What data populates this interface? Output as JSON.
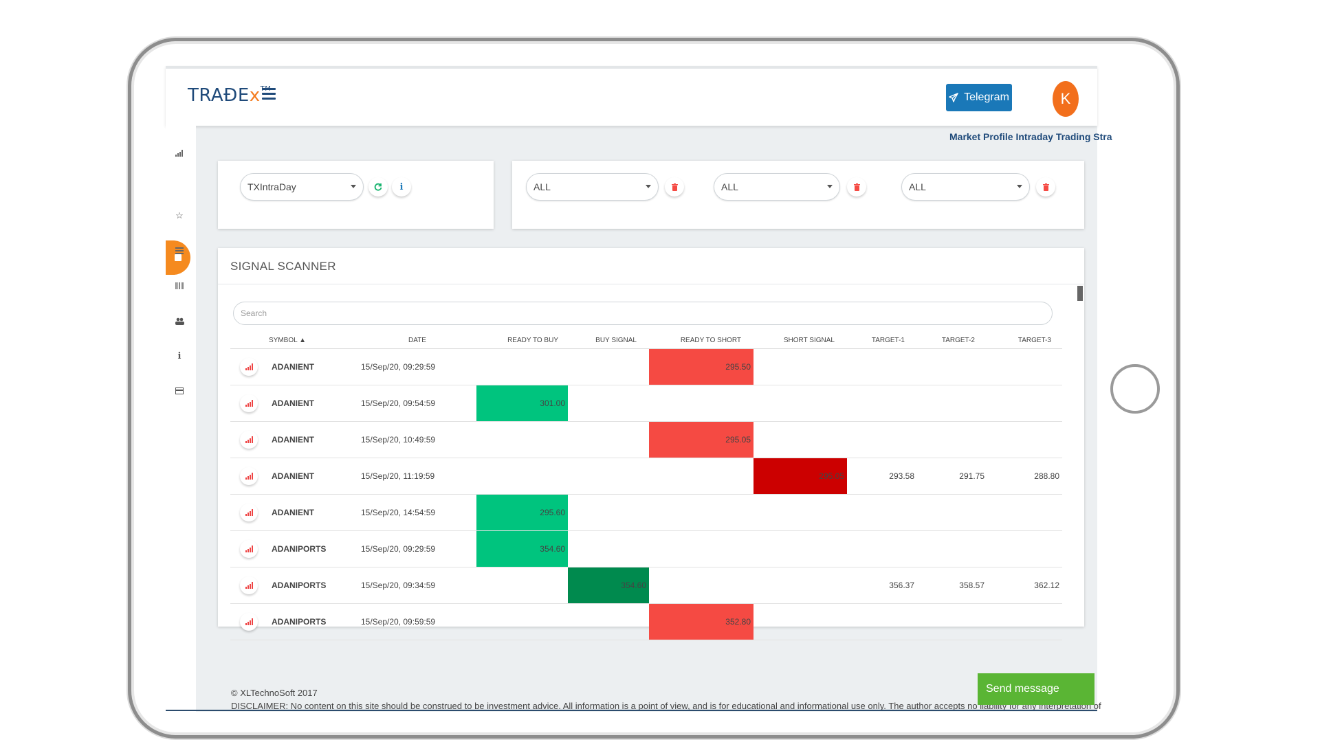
{
  "header": {
    "logo": "TRAĐE",
    "logo_x": "x",
    "logo_tm": "TM",
    "telegram_label": "Telegram",
    "avatar_initial": "K"
  },
  "marquee": "Market Profile Intraday Trading Stra",
  "filters": {
    "strategy": "TXIntraDay",
    "filter1": "ALL",
    "filter2": "ALL",
    "filter3": "ALL"
  },
  "scanner": {
    "title": "SIGNAL SCANNER",
    "search_placeholder": "Search",
    "sort_indicator": "▲",
    "columns": [
      "SYMBOL",
      "DATE",
      "READY TO BUY",
      "BUY SIGNAL",
      "READY TO SHORT",
      "SHORT SIGNAL",
      "TARGET-1",
      "TARGET-2",
      "TARGET-3"
    ],
    "rows": [
      {
        "symbol": "ADANIENT",
        "date": "15/Sep/20, 09:29:59",
        "ready_to_buy": "",
        "buy_signal": "",
        "ready_to_short": "295.50",
        "short_signal": "",
        "t1": "",
        "t2": "",
        "t3": ""
      },
      {
        "symbol": "ADANIENT",
        "date": "15/Sep/20, 09:54:59",
        "ready_to_buy": "301.00",
        "buy_signal": "",
        "ready_to_short": "",
        "short_signal": "",
        "t1": "",
        "t2": "",
        "t3": ""
      },
      {
        "symbol": "ADANIENT",
        "date": "15/Sep/20, 10:49:59",
        "ready_to_buy": "",
        "buy_signal": "",
        "ready_to_short": "295.05",
        "short_signal": "",
        "t1": "",
        "t2": "",
        "t3": ""
      },
      {
        "symbol": "ADANIENT",
        "date": "15/Sep/20, 11:19:59",
        "ready_to_buy": "",
        "buy_signal": "",
        "ready_to_short": "",
        "short_signal": "295.05",
        "t1": "293.58",
        "t2": "291.75",
        "t3": "288.80"
      },
      {
        "symbol": "ADANIENT",
        "date": "15/Sep/20, 14:54:59",
        "ready_to_buy": "295.60",
        "buy_signal": "",
        "ready_to_short": "",
        "short_signal": "",
        "t1": "",
        "t2": "",
        "t3": ""
      },
      {
        "symbol": "ADANIPORTS",
        "date": "15/Sep/20, 09:29:59",
        "ready_to_buy": "354.60",
        "buy_signal": "",
        "ready_to_short": "",
        "short_signal": "",
        "t1": "",
        "t2": "",
        "t3": ""
      },
      {
        "symbol": "ADANIPORTS",
        "date": "15/Sep/20, 09:34:59",
        "ready_to_buy": "",
        "buy_signal": "354.60",
        "ready_to_short": "",
        "short_signal": "",
        "t1": "356.37",
        "t2": "358.57",
        "t3": "362.12"
      },
      {
        "symbol": "ADANIPORTS",
        "date": "15/Sep/20, 09:59:59",
        "ready_to_buy": "",
        "buy_signal": "",
        "ready_to_short": "352.80",
        "short_signal": "",
        "t1": "",
        "t2": "",
        "t3": ""
      }
    ]
  },
  "footer": {
    "copyright": "© XLTechnoSoft 2017",
    "disclaimer": "DISCLAIMER: No content on this site should be construed to be investment advice. All information is a point of view, and is for educational and informational use only. The author accepts no liability for any interpretation of"
  },
  "send_message_label": "Send message",
  "colors": {
    "ready_to_buy": "#00c47e",
    "buy_signal": "#008a4e",
    "ready_to_short": "#f54a43",
    "short_signal": "#cc0000",
    "accent": "#f58a1f"
  },
  "icons": {
    "sidebar": [
      "bar-chart-icon",
      "grid-icon",
      "star-icon",
      "list-icon",
      "barcode-icon",
      "users-icon",
      "info-icon",
      "card-icon"
    ],
    "row_action": "signal-chart-icon",
    "refresh": "refresh-icon",
    "info": "info-icon",
    "delete": "trash-icon",
    "telegram": "paper-plane-icon"
  }
}
